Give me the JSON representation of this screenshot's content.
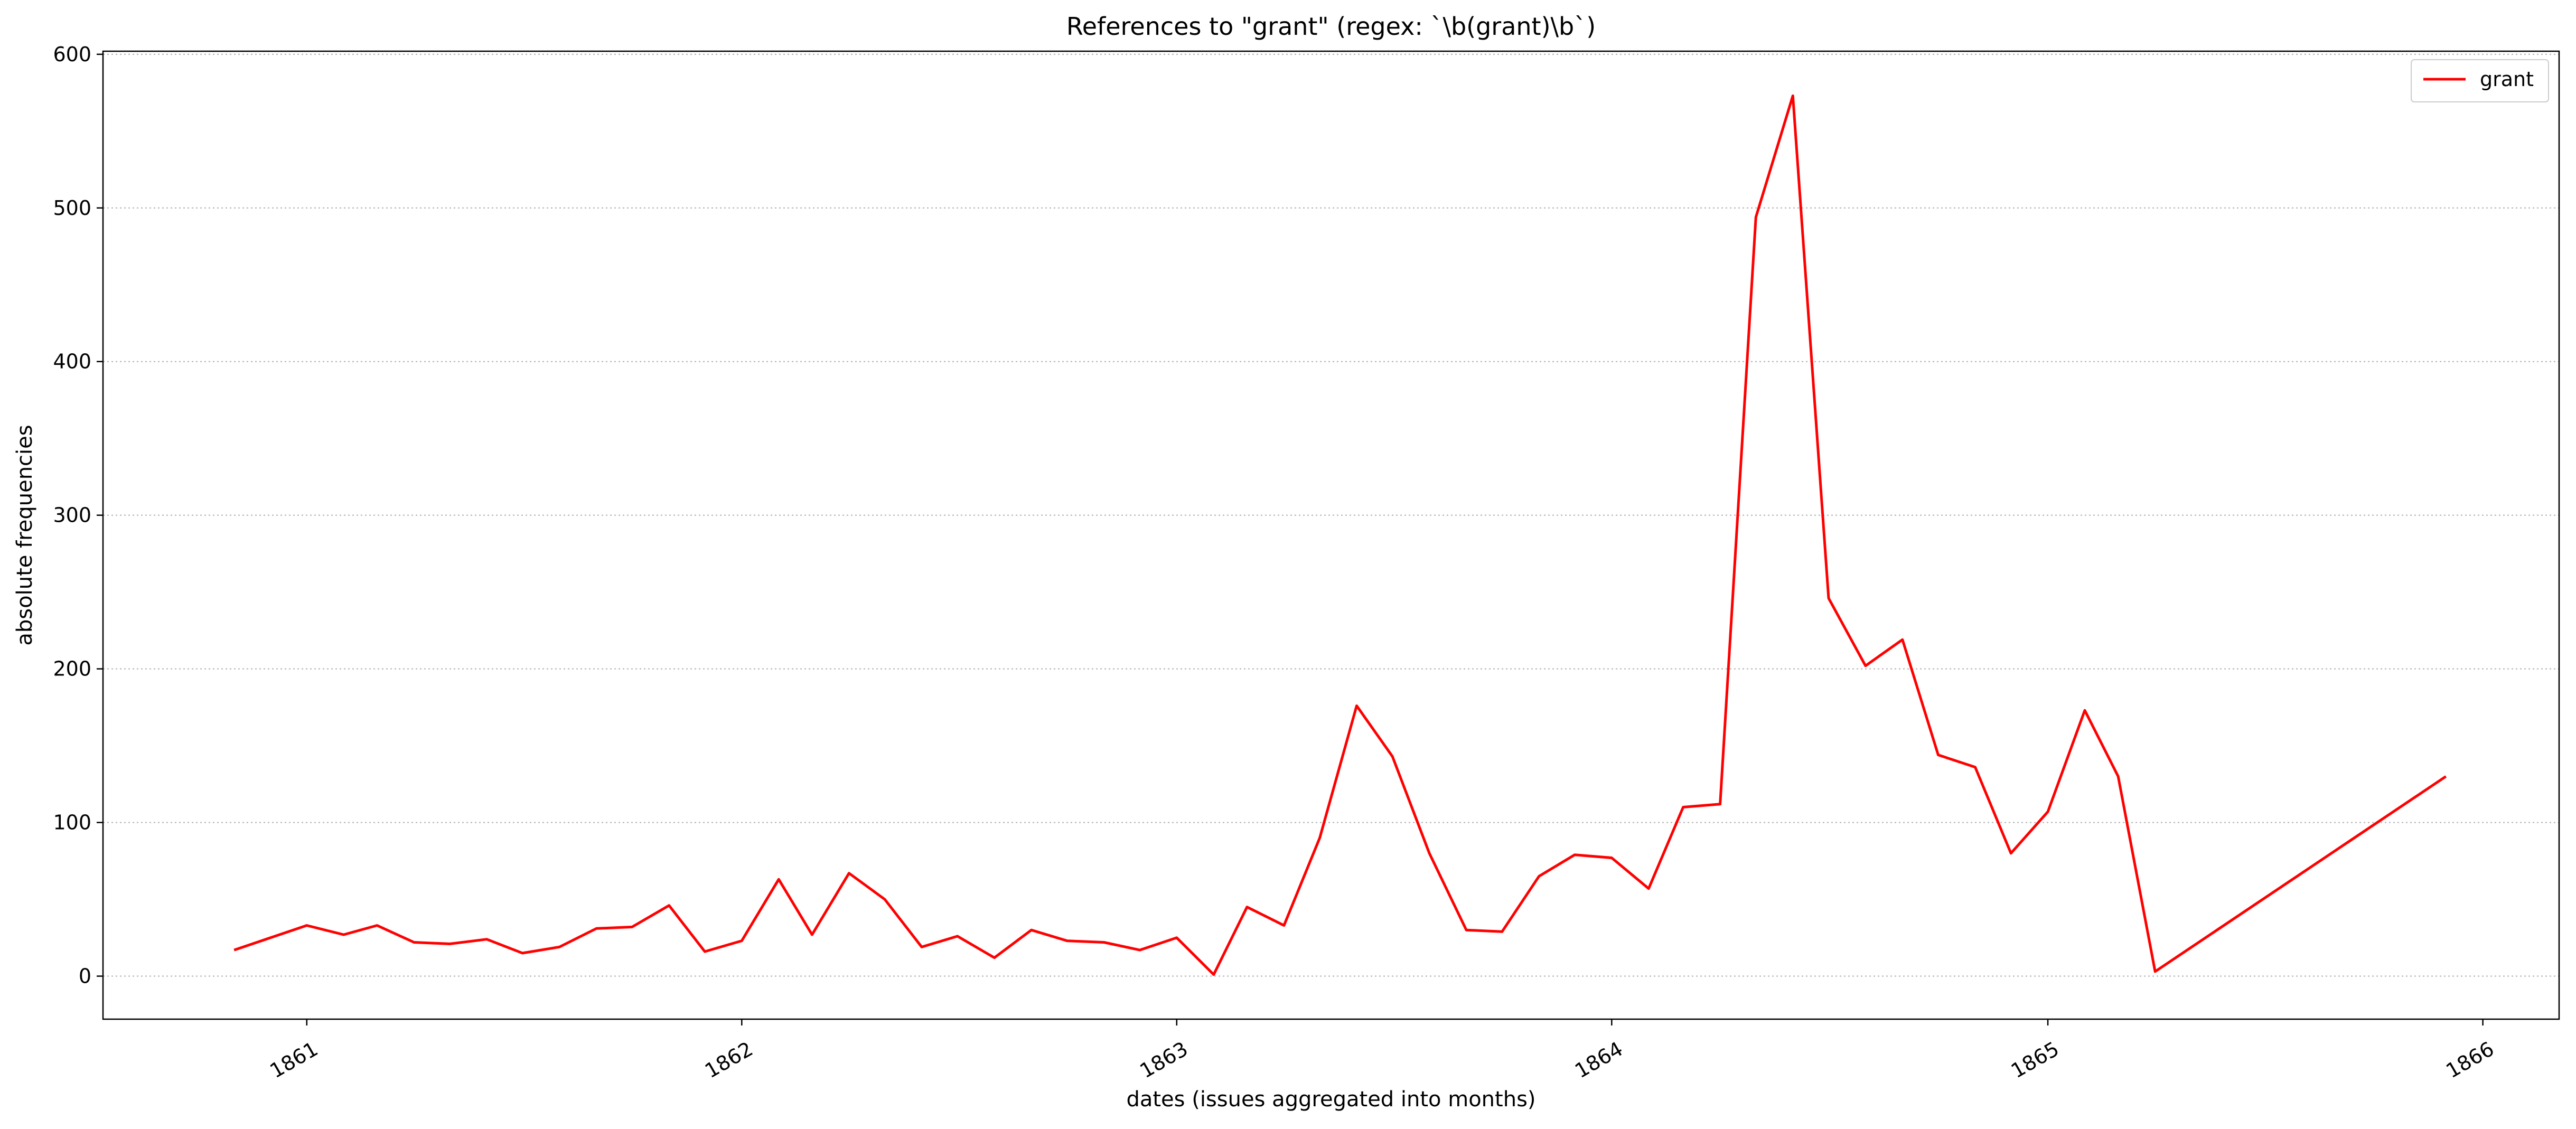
{
  "chart_data": {
    "type": "line",
    "title": "References to \"grant\" (regex: `\\b(grant)\\b`)",
    "xlabel": "dates (issues aggregated into months)",
    "ylabel": "absolute frequencies",
    "ylim": [
      -28,
      602
    ],
    "xlim": [
      "1860-07-14",
      "1866-03-06"
    ],
    "xticks": [
      {
        "label": "1861",
        "date": "1861-01-01"
      },
      {
        "label": "1862",
        "date": "1862-01-01"
      },
      {
        "label": "1863",
        "date": "1863-01-01"
      },
      {
        "label": "1864",
        "date": "1864-01-01"
      },
      {
        "label": "1865",
        "date": "1865-01-01"
      },
      {
        "label": "1866",
        "date": "1866-01-01"
      }
    ],
    "yticks": [
      0,
      100,
      200,
      300,
      400,
      500,
      600
    ],
    "grid": "y",
    "legend": "top-right",
    "series": [
      {
        "name": "grant",
        "color": "#ff0000",
        "x": [
          "1860-11-01",
          "1861-01-01",
          "1861-02-01",
          "1861-03-01",
          "1861-04-01",
          "1861-05-01",
          "1861-06-01",
          "1861-07-01",
          "1861-08-01",
          "1861-09-01",
          "1861-10-01",
          "1861-11-01",
          "1861-12-01",
          "1862-01-01",
          "1862-02-01",
          "1862-03-01",
          "1862-04-01",
          "1862-05-01",
          "1862-06-01",
          "1862-07-01",
          "1862-08-01",
          "1862-09-01",
          "1862-10-01",
          "1862-11-01",
          "1862-12-01",
          "1863-01-01",
          "1863-02-01",
          "1863-03-01",
          "1863-04-01",
          "1863-05-01",
          "1863-06-01",
          "1863-07-01",
          "1863-08-01",
          "1863-09-01",
          "1863-10-01",
          "1863-11-01",
          "1863-12-01",
          "1864-01-01",
          "1864-02-01",
          "1864-03-01",
          "1864-04-01",
          "1864-05-01",
          "1864-06-01",
          "1864-07-01",
          "1864-08-01",
          "1864-09-01",
          "1864-10-01",
          "1864-11-01",
          "1864-12-01",
          "1865-01-01",
          "1865-02-01",
          "1865-03-01",
          "1865-04-01",
          "1865-12-01"
        ],
        "values": [
          17,
          33,
          27,
          33,
          22,
          21,
          24,
          15,
          19,
          31,
          32,
          46,
          16,
          23,
          63,
          27,
          67,
          50,
          19,
          26,
          12,
          30,
          23,
          22,
          17,
          25,
          1,
          45,
          33,
          90,
          176,
          143,
          80,
          30,
          29,
          65,
          79,
          77,
          57,
          110,
          112,
          494,
          573,
          246,
          202,
          219,
          144,
          136,
          80,
          107,
          173,
          130,
          3,
          130
        ]
      }
    ]
  }
}
